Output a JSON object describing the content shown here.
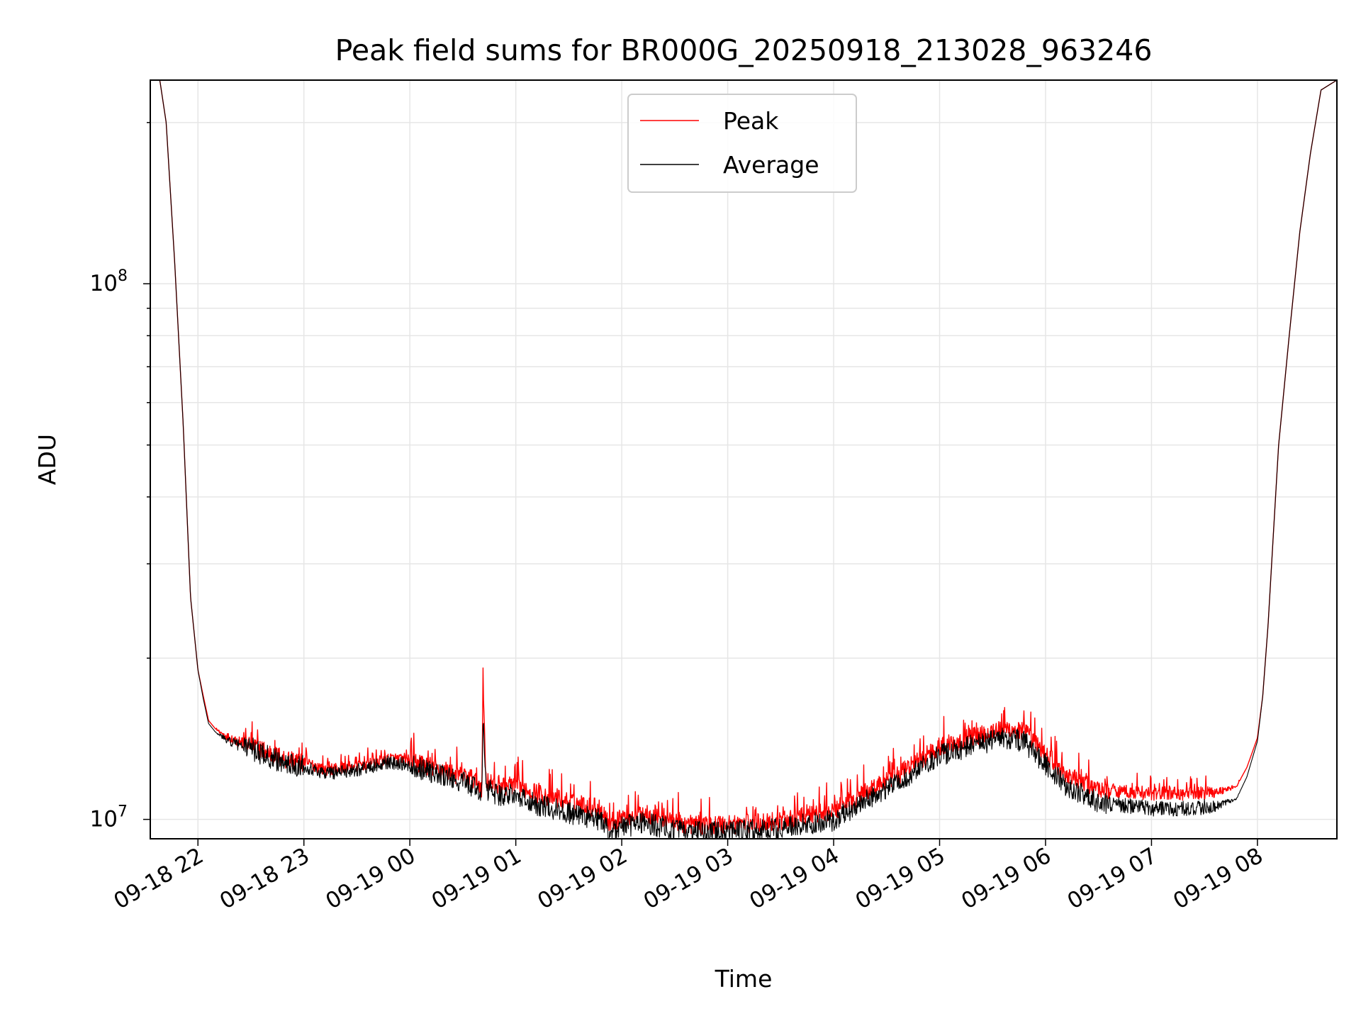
{
  "chart_data": {
    "type": "line",
    "title": "Peak field sums for BR000G_20250918_213028_963246",
    "xlabel": "Time",
    "ylabel": "ADU",
    "yscale": "log",
    "ylim": [
      9200000,
      240000000
    ],
    "xlim_hours": [
      -0.45,
      10.75
    ],
    "x_unit": "hours since 09-18 22:00",
    "x_ticks": [
      {
        "value": 0,
        "label": "09-18 22"
      },
      {
        "value": 1,
        "label": "09-18 23"
      },
      {
        "value": 2,
        "label": "09-19 00"
      },
      {
        "value": 3,
        "label": "09-19 01"
      },
      {
        "value": 4,
        "label": "09-19 02"
      },
      {
        "value": 5,
        "label": "09-19 03"
      },
      {
        "value": 6,
        "label": "09-19 04"
      },
      {
        "value": 7,
        "label": "09-19 05"
      },
      {
        "value": 8,
        "label": "09-19 06"
      },
      {
        "value": 9,
        "label": "09-19 07"
      },
      {
        "value": 10,
        "label": "09-19 08"
      }
    ],
    "y_ticks": [
      {
        "value": 10000000,
        "base": "10",
        "exp": "7"
      },
      {
        "value": 100000000,
        "base": "10",
        "exp": "8"
      }
    ],
    "grid": true,
    "legend_position": "upper-center",
    "series": [
      {
        "name": "Peak",
        "color": "#ff0000",
        "x": [
          -0.45,
          -0.36,
          -0.3,
          -0.22,
          -0.14,
          -0.07,
          0,
          0.05,
          0.1,
          0.16,
          0.22,
          0.3,
          0.45,
          0.6,
          0.8,
          1.0,
          1.2,
          1.5,
          1.8,
          2.0,
          2.3,
          2.6,
          2.68,
          2.69,
          2.72,
          2.8,
          3.0,
          3.2,
          3.5,
          3.8,
          3.88,
          4.0,
          4.2,
          4.5,
          4.6,
          5.0,
          5.5,
          6.0,
          6.3,
          6.6,
          6.8,
          7.0,
          7.3,
          7.6,
          7.8,
          8.0,
          8.2,
          8.5,
          9.0,
          9.3,
          9.6,
          9.8,
          9.9,
          10.0,
          10.05,
          10.1,
          10.15,
          10.2,
          10.3,
          10.4,
          10.5,
          10.6,
          10.75
        ],
        "y": [
          240000000,
          240000000,
          200000000,
          110000000,
          55000000,
          26000000,
          19000000,
          17000000,
          15300000,
          14800000,
          14500000,
          14200000,
          13900000,
          13500000,
          13000000,
          12800000,
          12400000,
          12600000,
          13000000,
          12900000,
          12400000,
          11900000,
          11500000,
          18000000,
          11800000,
          11600000,
          11600000,
          11200000,
          10800000,
          10500000,
          9900000,
          10100000,
          10300000,
          10000000,
          9800000,
          9800000,
          9950000,
          10400000,
          11300000,
          12100000,
          12900000,
          13700000,
          14300000,
          14800000,
          14600000,
          13300000,
          12100000,
          11400000,
          11200000,
          11200000,
          11250000,
          11500000,
          12500000,
          14200000,
          17000000,
          23000000,
          34000000,
          50000000,
          80000000,
          125000000,
          175000000,
          230000000,
          240000000
        ],
        "noise": 0.065,
        "noise_bias": 1.0,
        "width": 1.4
      },
      {
        "name": "Average",
        "color": "#000000",
        "x": [
          -0.45,
          -0.36,
          -0.3,
          -0.22,
          -0.14,
          -0.07,
          0,
          0.05,
          0.1,
          0.16,
          0.22,
          0.3,
          0.45,
          0.6,
          0.8,
          1.0,
          1.2,
          1.5,
          1.8,
          2.0,
          2.3,
          2.6,
          2.68,
          2.69,
          2.72,
          2.8,
          3.0,
          3.2,
          3.5,
          3.8,
          3.88,
          4.0,
          4.2,
          4.5,
          4.6,
          5.0,
          5.5,
          6.0,
          6.3,
          6.6,
          6.8,
          7.0,
          7.3,
          7.6,
          7.8,
          8.0,
          8.2,
          8.5,
          9.0,
          9.3,
          9.6,
          9.8,
          9.9,
          10.0,
          10.05,
          10.1,
          10.15,
          10.2,
          10.3,
          10.4,
          10.5,
          10.6,
          10.75
        ],
        "y": [
          240000000,
          240000000,
          200000000,
          110000000,
          55000000,
          26000000,
          19000000,
          16800000,
          15100000,
          14600000,
          14300000,
          14000000,
          13700000,
          13300000,
          12800000,
          12600000,
          12200000,
          12400000,
          12800000,
          12700000,
          12100000,
          11600000,
          11200000,
          15500000,
          11400000,
          11200000,
          11100000,
          10700000,
          10300000,
          10000000,
          9500000,
          9700000,
          9900000,
          9600000,
          9500000,
          9500000,
          9650000,
          10000000,
          10900000,
          11700000,
          12500000,
          13200000,
          13800000,
          14200000,
          14000000,
          12700000,
          11500000,
          10800000,
          10500000,
          10500000,
          10600000,
          10900000,
          12000000,
          14000000,
          17000000,
          23000000,
          34000000,
          50000000,
          80000000,
          125000000,
          175000000,
          230000000,
          240000000
        ],
        "noise": 0.075,
        "noise_bias": -1.0,
        "width": 1.1
      }
    ]
  }
}
